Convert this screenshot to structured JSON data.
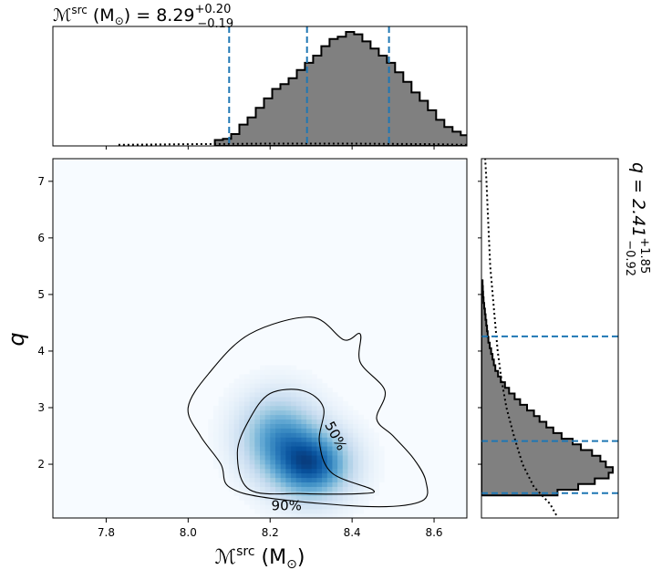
{
  "chart_data": {
    "type": "corner",
    "top_title": {
      "prefix": "ℳ",
      "sup": "src",
      "unit_open": " (M",
      "sub_unit": "⊙",
      "unit_close": ") = 8.29",
      "plus": "+0.20",
      "minus": "−0.19"
    },
    "right_title": {
      "text": "q = 2.41",
      "plus": "+1.85",
      "minus": "−0.92"
    },
    "xlabel": {
      "prefix": "ℳ",
      "sup": "src",
      "unit_open": " (M",
      "sub_unit": "⊙",
      "unit_close": ")"
    },
    "ylabel": "q",
    "xlim": [
      7.67,
      8.68
    ],
    "ylim": [
      1.05,
      7.4
    ],
    "xticks": [
      {
        "value": 7.8,
        "label": "7.8"
      },
      {
        "value": 8.0,
        "label": "8.0"
      },
      {
        "value": 8.2,
        "label": "8.2"
      },
      {
        "value": 8.4,
        "label": "8.4"
      },
      {
        "value": 8.6,
        "label": "8.6"
      }
    ],
    "yticks": [
      {
        "value": 2,
        "label": "2"
      },
      {
        "value": 3,
        "label": "3"
      },
      {
        "value": 4,
        "label": "4"
      },
      {
        "value": 5,
        "label": "5"
      },
      {
        "value": 6,
        "label": "6"
      },
      {
        "value": 7,
        "label": "7"
      }
    ],
    "mc_histogram": {
      "bin_edges_start": 8.065,
      "bin_width": 0.02,
      "counts": [
        0.05,
        0.06,
        0.1,
        0.18,
        0.24,
        0.32,
        0.4,
        0.48,
        0.52,
        0.57,
        0.64,
        0.7,
        0.76,
        0.84,
        0.9,
        0.92,
        0.96,
        0.94,
        0.88,
        0.82,
        0.76,
        0.7,
        0.62,
        0.54,
        0.45,
        0.38,
        0.3,
        0.22,
        0.16,
        0.12,
        0.09,
        0.06,
        0.04,
        0.03,
        0.02
      ],
      "prior_dotted": [
        [
          7.83,
          0.01
        ],
        [
          8.0,
          0.015
        ],
        [
          8.2,
          0.02
        ],
        [
          8.4,
          0.02
        ],
        [
          8.6,
          0.015
        ],
        [
          8.68,
          0.01
        ]
      ],
      "quantile_lines": [
        8.1,
        8.29,
        8.49
      ],
      "fill_color": "#808080",
      "line_color": "#1f77b4"
    },
    "q_histogram": {
      "bin_edges_start": 1.45,
      "bin_width": 0.1,
      "counts": [
        0.55,
        0.7,
        0.82,
        0.92,
        0.95,
        0.9,
        0.86,
        0.8,
        0.72,
        0.66,
        0.58,
        0.52,
        0.47,
        0.42,
        0.38,
        0.33,
        0.28,
        0.24,
        0.2,
        0.17,
        0.14,
        0.12,
        0.1,
        0.09,
        0.08,
        0.07,
        0.06,
        0.05,
        0.045,
        0.04,
        0.035,
        0.03,
        0.025,
        0.02,
        0.015,
        0.012,
        0.01,
        0.008
      ],
      "prior_dotted": [
        [
          1.1,
          0.6
        ],
        [
          1.3,
          0.55
        ],
        [
          1.6,
          0.42
        ],
        [
          2.0,
          0.33
        ],
        [
          2.5,
          0.26
        ],
        [
          3.0,
          0.2
        ],
        [
          3.5,
          0.16
        ],
        [
          4.0,
          0.13
        ],
        [
          4.5,
          0.11
        ],
        [
          5.0,
          0.09
        ],
        [
          5.5,
          0.07
        ],
        [
          6.0,
          0.06
        ],
        [
          6.5,
          0.05
        ],
        [
          7.0,
          0.04
        ],
        [
          7.4,
          0.03
        ]
      ],
      "quantile_lines": [
        1.49,
        2.41,
        4.26
      ]
    },
    "density_2d": {
      "colormap": "Blues",
      "peaks": [
        {
          "x": 8.3,
          "y": 2.0,
          "sx": 0.06,
          "sy": 0.38,
          "w": 1.0
        },
        {
          "x": 8.22,
          "y": 2.5,
          "sx": 0.06,
          "sy": 0.45,
          "w": 0.6
        }
      ]
    },
    "contours": [
      {
        "label": "50%",
        "points": [
          [
            8.15,
            1.55
          ],
          [
            8.28,
            1.48
          ],
          [
            8.42,
            1.48
          ],
          [
            8.45,
            1.55
          ],
          [
            8.35,
            1.85
          ],
          [
            8.32,
            2.4
          ],
          [
            8.33,
            3.0
          ],
          [
            8.28,
            3.3
          ],
          [
            8.2,
            3.25
          ],
          [
            8.15,
            2.8
          ],
          [
            8.12,
            2.2
          ]
        ],
        "label_at": [
          8.36,
          2.5
        ]
      },
      {
        "label": "90%",
        "points": [
          [
            8.08,
            2.0
          ],
          [
            8.1,
            1.6
          ],
          [
            8.2,
            1.4
          ],
          [
            8.45,
            1.25
          ],
          [
            8.57,
            1.35
          ],
          [
            8.58,
            1.7
          ],
          [
            8.55,
            2.1
          ],
          [
            8.5,
            2.5
          ],
          [
            8.46,
            2.8
          ],
          [
            8.48,
            3.3
          ],
          [
            8.42,
            3.8
          ],
          [
            8.42,
            4.3
          ],
          [
            8.38,
            4.2
          ],
          [
            8.3,
            4.6
          ],
          [
            8.15,
            4.3
          ],
          [
            8.05,
            3.6
          ],
          [
            8.0,
            3.0
          ],
          [
            8.03,
            2.5
          ]
        ],
        "label_at": [
          8.24,
          1.27
        ]
      }
    ]
  }
}
